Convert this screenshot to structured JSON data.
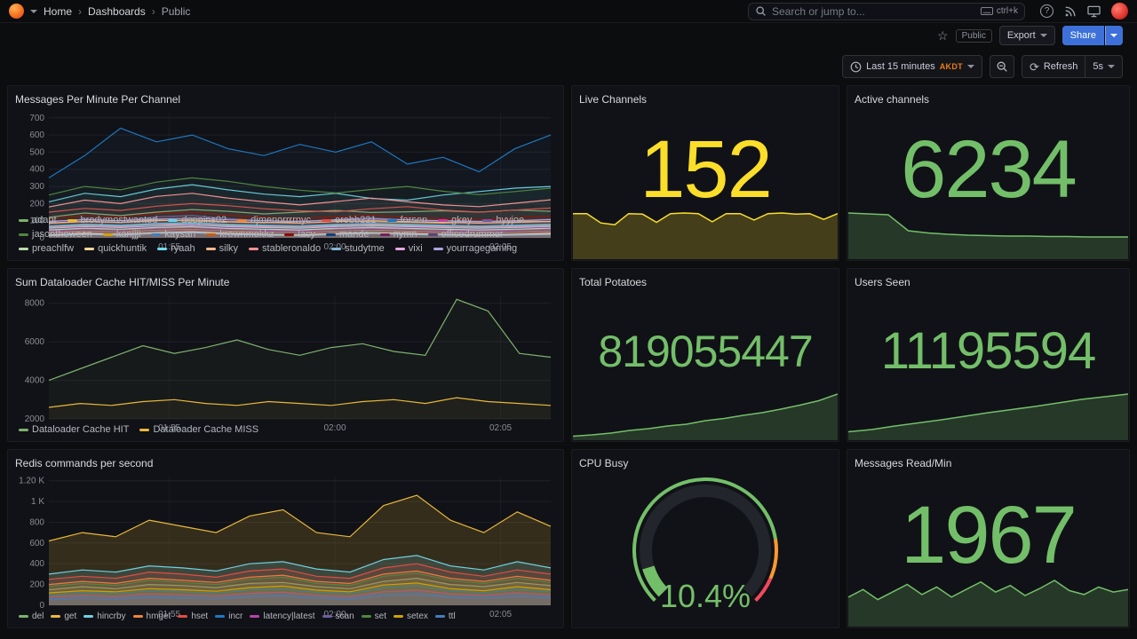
{
  "nav": {
    "breadcrumb": [
      "Home",
      "Dashboards",
      "Public"
    ],
    "separator": "›",
    "search_placeholder": "Search or jump to...",
    "shortcut_hint": "ctrl+k"
  },
  "toolbar": {
    "public_badge": "Public",
    "export_label": "Export",
    "share_label": "Share"
  },
  "timebar": {
    "range_label": "Last 15 minutes",
    "timezone": "AKDT",
    "refresh_label": "Refresh",
    "refresh_interval": "5s"
  },
  "icons": {
    "star": "☆",
    "refresh": "⟳",
    "help": "?"
  },
  "colors": {
    "accent_blue": "#3D71D9",
    "stat_green": "#73BF69",
    "stat_yellow": "#FADE2A",
    "timezone_orange": "#EB7B18"
  },
  "chart_data": [
    {
      "id": "messages_per_minute_per_channel",
      "type": "line",
      "title": "Messages Per Minute Per Channel",
      "ylim": [
        0,
        730
      ],
      "fill_opacity": 0.06,
      "y_ticks": [
        [
          0,
          "0"
        ],
        [
          100,
          "100"
        ],
        [
          200,
          "200"
        ],
        [
          300,
          "300"
        ],
        [
          400,
          "400"
        ],
        [
          500,
          "500"
        ],
        [
          600,
          "600"
        ],
        [
          700,
          "700"
        ]
      ],
      "x_ticks": [
        [
          0.24,
          "01:55"
        ],
        [
          0.57,
          "02:00"
        ],
        [
          0.9,
          "02:05"
        ]
      ],
      "series": [
        {
          "name": "adapt",
          "color": "#7EB26D",
          "values": [
            120,
            145,
            130,
            150,
            165,
            155,
            140,
            150,
            160,
            148,
            152,
            158,
            150,
            162,
            155
          ]
        },
        {
          "name": "brodymostwanted",
          "color": "#EAB839",
          "values": [
            85,
            95,
            90,
            105,
            98,
            92,
            88,
            96,
            102,
            94,
            90,
            86,
            92,
            98,
            95
          ]
        },
        {
          "name": "deepins02",
          "color": "#6ED0E0",
          "values": [
            210,
            260,
            240,
            285,
            310,
            280,
            255,
            240,
            260,
            230,
            220,
            250,
            270,
            290,
            300
          ]
        },
        {
          "name": "djmenorrrrnyc",
          "color": "#EF843C",
          "values": [
            60,
            72,
            66,
            80,
            74,
            70,
            64,
            62,
            70,
            76,
            70,
            66,
            60,
            66,
            72
          ]
        },
        {
          "name": "erobb221",
          "color": "#E24D42",
          "values": [
            150,
            172,
            160,
            185,
            200,
            188,
            170,
            158,
            152,
            170,
            182,
            162,
            150,
            162,
            174
          ]
        },
        {
          "name": "forsen",
          "color": "#1F78C1",
          "values": [
            350,
            480,
            640,
            560,
            600,
            520,
            480,
            545,
            500,
            560,
            430,
            470,
            385,
            520,
            600
          ]
        },
        {
          "name": "gkey",
          "color": "#BA43A9",
          "values": [
            40,
            52,
            46,
            56,
            60,
            50,
            45,
            42,
            50,
            56,
            50,
            45,
            40,
            46,
            52
          ]
        },
        {
          "name": "hyyjoe",
          "color": "#705DA0",
          "values": [
            92,
            110,
            100,
            122,
            130,
            112,
            100,
            96,
            106,
            116,
            104,
            96,
            90,
            100,
            110
          ]
        },
        {
          "name": "jasontheween",
          "color": "#508642",
          "values": [
            250,
            300,
            280,
            325,
            350,
            330,
            300,
            278,
            262,
            282,
            300,
            272,
            252,
            270,
            290
          ]
        },
        {
          "name": "kanjjji",
          "color": "#CCA300",
          "values": [
            30,
            42,
            36,
            46,
            50,
            40,
            35,
            32,
            40,
            46,
            40,
            35,
            30,
            36,
            42
          ]
        },
        {
          "name": "kaysan",
          "color": "#447EBC",
          "values": [
            70,
            82,
            76,
            86,
            90,
            80,
            75,
            72,
            80,
            86,
            80,
            75,
            70,
            76,
            82
          ]
        },
        {
          "name": "krownmokkz",
          "color": "#C15C17",
          "values": [
            22,
            32,
            26,
            36,
            40,
            30,
            26,
            22,
            30,
            36,
            30,
            26,
            22,
            26,
            32
          ]
        },
        {
          "name": "lacy",
          "color": "#890F02",
          "values": [
            110,
            130,
            120,
            142,
            150,
            132,
            120,
            112,
            122,
            132,
            120,
            112,
            106,
            116,
            126
          ]
        },
        {
          "name": "mande",
          "color": "#0A437C",
          "values": [
            50,
            62,
            56,
            66,
            70,
            60,
            55,
            52,
            60,
            66,
            60,
            55,
            50,
            56,
            62
          ]
        },
        {
          "name": "nymn",
          "color": "#6D1F62",
          "values": [
            36,
            46,
            40,
            50,
            55,
            45,
            40,
            36,
            45,
            50,
            45,
            40,
            36,
            40,
            46
          ]
        },
        {
          "name": "officedrummer",
          "color": "#584477",
          "values": [
            26,
            36,
            30,
            40,
            45,
            35,
            30,
            26,
            35,
            40,
            35,
            30,
            26,
            30,
            36
          ]
        },
        {
          "name": "preachlfw",
          "color": "#B7DBAB",
          "values": [
            46,
            56,
            50,
            60,
            65,
            55,
            50,
            46,
            55,
            60,
            55,
            50,
            46,
            50,
            56
          ]
        },
        {
          "name": "quickhuntik",
          "color": "#F4D598",
          "values": [
            16,
            26,
            20,
            30,
            35,
            25,
            20,
            16,
            25,
            30,
            25,
            20,
            16,
            20,
            26
          ]
        },
        {
          "name": "ryaah",
          "color": "#70DBED",
          "values": [
            66,
            76,
            70,
            80,
            85,
            75,
            70,
            66,
            75,
            80,
            75,
            70,
            66,
            70,
            76
          ]
        },
        {
          "name": "silky",
          "color": "#F9BA8F",
          "values": [
            86,
            96,
            90,
            100,
            105,
            95,
            90,
            86,
            95,
            100,
            95,
            90,
            86,
            90,
            96
          ]
        },
        {
          "name": "stableronaldo",
          "color": "#F29191",
          "values": [
            180,
            220,
            200,
            242,
            260,
            232,
            210,
            192,
            212,
            232,
            210,
            192,
            182,
            202,
            222
          ]
        },
        {
          "name": "studytme",
          "color": "#82B5D8",
          "values": [
            12,
            20,
            16,
            26,
            30,
            20,
            16,
            12,
            20,
            26,
            20,
            16,
            12,
            16,
            20
          ]
        },
        {
          "name": "vixi",
          "color": "#E5A8E2",
          "values": [
            56,
            66,
            60,
            70,
            75,
            65,
            60,
            56,
            65,
            70,
            65,
            60,
            56,
            60,
            66
          ]
        },
        {
          "name": "yourragegaming",
          "color": "#AEA2E0",
          "values": [
            96,
            106,
            100,
            110,
            115,
            105,
            100,
            96,
            105,
            110,
            105,
            100,
            96,
            100,
            106
          ]
        }
      ]
    },
    {
      "id": "dataloader_cache",
      "type": "line",
      "title": "Sum Dataloader Cache HIT/MISS Per Minute",
      "ylim": [
        2000,
        8400
      ],
      "fill_opacity": 0.05,
      "y_ticks": [
        [
          2000,
          "2000"
        ],
        [
          4000,
          "4000"
        ],
        [
          6000,
          "6000"
        ],
        [
          8000,
          "8000"
        ]
      ],
      "x_ticks": [
        [
          0.24,
          "01:55"
        ],
        [
          0.57,
          "02:00"
        ],
        [
          0.9,
          "02:05"
        ]
      ],
      "series": [
        {
          "name": "Dataloader Cache HIT",
          "color": "#7EB26D",
          "values": [
            4000,
            4600,
            5200,
            5800,
            5400,
            5700,
            6100,
            5600,
            5300,
            5700,
            5900,
            5500,
            5300,
            8200,
            7600,
            5400,
            5200
          ]
        },
        {
          "name": "Dataloader Cache MISS",
          "color": "#EAB839",
          "values": [
            2600,
            2800,
            2700,
            2900,
            3000,
            2800,
            2700,
            2900,
            2800,
            2700,
            2900,
            3000,
            2800,
            3100,
            2900,
            2800,
            2700
          ]
        }
      ]
    },
    {
      "id": "redis_commands_per_second",
      "type": "line",
      "title": "Redis commands per second",
      "ylim": [
        0,
        1240
      ],
      "fill_opacity": 0.16,
      "y_ticks": [
        [
          0,
          "0"
        ],
        [
          200,
          "200"
        ],
        [
          400,
          "400"
        ],
        [
          600,
          "600"
        ],
        [
          800,
          "800"
        ],
        [
          1000,
          "1 K"
        ],
        [
          1200,
          "1.20 K"
        ]
      ],
      "x_ticks": [
        [
          0.24,
          "01:55"
        ],
        [
          0.57,
          "02:00"
        ],
        [
          0.9,
          "02:05"
        ]
      ],
      "series": [
        {
          "name": "del",
          "color": "#7EB26D",
          "values": [
            150,
            180,
            160,
            200,
            190,
            170,
            210,
            220,
            180,
            160,
            230,
            260,
            200,
            180,
            220,
            190
          ]
        },
        {
          "name": "get",
          "color": "#EAB839",
          "values": [
            620,
            700,
            660,
            820,
            760,
            700,
            860,
            920,
            700,
            660,
            960,
            1060,
            820,
            700,
            900,
            760
          ]
        },
        {
          "name": "hincrby",
          "color": "#6ED0E0",
          "values": [
            300,
            340,
            320,
            380,
            360,
            330,
            400,
            420,
            350,
            320,
            440,
            480,
            380,
            340,
            420,
            360
          ]
        },
        {
          "name": "hmget",
          "color": "#EF843C",
          "values": [
            200,
            230,
            210,
            260,
            240,
            220,
            270,
            290,
            230,
            210,
            300,
            330,
            260,
            230,
            280,
            240
          ]
        },
        {
          "name": "hset",
          "color": "#E24D42",
          "values": [
            250,
            280,
            260,
            320,
            300,
            270,
            330,
            350,
            280,
            260,
            360,
            400,
            320,
            280,
            340,
            300
          ]
        },
        {
          "name": "incr",
          "color": "#1F78C1",
          "values": [
            100,
            120,
            110,
            140,
            130,
            115,
            150,
            160,
            125,
            110,
            170,
            190,
            140,
            120,
            155,
            130
          ]
        },
        {
          "name": "latency|latest",
          "color": "#BA43A9",
          "values": [
            80,
            95,
            85,
            110,
            100,
            90,
            115,
            125,
            95,
            85,
            130,
            145,
            110,
            95,
            120,
            100
          ]
        },
        {
          "name": "scan",
          "color": "#705DA0",
          "values": [
            50,
            60,
            55,
            70,
            65,
            58,
            75,
            80,
            60,
            55,
            85,
            95,
            70,
            60,
            78,
            65
          ]
        },
        {
          "name": "set",
          "color": "#508642",
          "values": [
            180,
            210,
            190,
            240,
            220,
            200,
            250,
            270,
            210,
            190,
            280,
            310,
            240,
            210,
            260,
            220
          ]
        },
        {
          "name": "setex",
          "color": "#CCA300",
          "values": [
            120,
            140,
            130,
            160,
            150,
            135,
            170,
            185,
            145,
            130,
            195,
            215,
            160,
            140,
            180,
            150
          ]
        },
        {
          "name": "ttl",
          "color": "#447EBC",
          "values": [
            60,
            75,
            65,
            85,
            78,
            70,
            90,
            98,
            75,
            65,
            105,
            115,
            85,
            75,
            95,
            80
          ]
        }
      ]
    },
    {
      "id": "live_channels",
      "type": "stat",
      "title": "Live Channels",
      "value": "152",
      "color": "#FADE2A",
      "spark": [
        150,
        150,
        118,
        112,
        150,
        148,
        120,
        150,
        152,
        150,
        122,
        150,
        150,
        128,
        150,
        152,
        148,
        150,
        130,
        150
      ]
    },
    {
      "id": "active_channels",
      "type": "stat",
      "title": "Active channels",
      "value": "6234",
      "color": "#73BF69",
      "spark": [
        100,
        98,
        96,
        60,
        55,
        52,
        50,
        49,
        48,
        48,
        47,
        47,
        46,
        46,
        46
      ]
    },
    {
      "id": "total_potatoes",
      "type": "stat",
      "title": "Total Potatoes",
      "value": "819055447",
      "color": "#73BF69",
      "spark": [
        5,
        8,
        12,
        18,
        22,
        28,
        32,
        40,
        45,
        52,
        58,
        66,
        75,
        85,
        100
      ]
    },
    {
      "id": "users_seen",
      "type": "stat",
      "title": "Users Seen",
      "value": "11195594",
      "color": "#73BF69",
      "spark": [
        15,
        20,
        28,
        35,
        42,
        50,
        58,
        65,
        72,
        80,
        88,
        94,
        100
      ]
    },
    {
      "id": "cpu_busy",
      "type": "gauge",
      "title": "CPU Busy",
      "value": 10.4,
      "display": "10.4%",
      "min": 0,
      "max": 100,
      "color": "#73BF69",
      "thresholds": [
        [
          0,
          0.8,
          "#73BF69"
        ],
        [
          0.8,
          0.92,
          "#FF9830"
        ],
        [
          0.92,
          1,
          "#F2495C"
        ]
      ]
    },
    {
      "id": "messages_read_min",
      "type": "stat",
      "title": "Messages Read/Min",
      "value": "1967",
      "color": "#73BF69",
      "spark": [
        55,
        70,
        50,
        65,
        80,
        60,
        75,
        55,
        70,
        85,
        65,
        78,
        58,
        72,
        88,
        68,
        60,
        75,
        65,
        70
      ]
    }
  ]
}
